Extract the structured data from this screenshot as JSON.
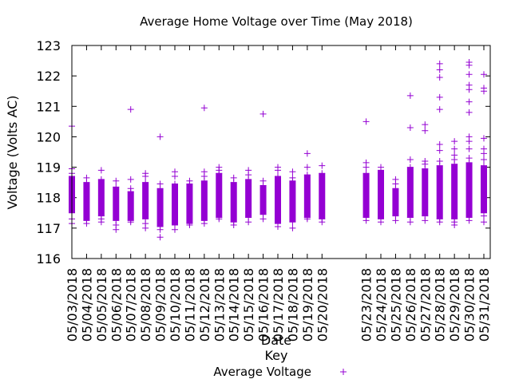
{
  "chart_data": {
    "type": "scatter",
    "title": "Average Home Voltage over Time (May 2018)",
    "xlabel": "Date",
    "ylabel": "Voltage (Volts AC)",
    "ylim": [
      116,
      123
    ],
    "yticks": [
      116,
      117,
      118,
      119,
      120,
      121,
      122,
      123
    ],
    "grid": false,
    "legend": {
      "title": "Key",
      "position": "bottom-center",
      "entries": [
        "Average Voltage"
      ]
    },
    "series_color": "#9400d3",
    "series": [
      {
        "name": "Average Voltage",
        "days": [
          {
            "date": "05/03/2018",
            "min": 117.5,
            "max": 118.7,
            "outliers": [
              120.35,
              118.95,
              118.8,
              117.3,
              117.15
            ]
          },
          {
            "date": "05/04/2018",
            "min": 117.25,
            "max": 118.5,
            "outliers": [
              118.65,
              117.15
            ]
          },
          {
            "date": "05/05/2018",
            "min": 117.4,
            "max": 118.6,
            "outliers": [
              118.9,
              117.2,
              117.3
            ]
          },
          {
            "date": "05/06/2018",
            "min": 117.25,
            "max": 118.35,
            "outliers": [
              118.55,
              117.1,
              116.95
            ]
          },
          {
            "date": "05/07/2018",
            "min": 117.25,
            "max": 118.2,
            "outliers": [
              120.9,
              118.6,
              118.3,
              117.2
            ]
          },
          {
            "date": "05/08/2018",
            "min": 117.3,
            "max": 118.5,
            "outliers": [
              118.8,
              118.7,
              117.15,
              117.0
            ]
          },
          {
            "date": "05/09/2018",
            "min": 117.05,
            "max": 118.3,
            "outliers": [
              120.0,
              118.45,
              116.95,
              116.7
            ]
          },
          {
            "date": "05/10/2018",
            "min": 117.1,
            "max": 118.45,
            "outliers": [
              118.85,
              118.7,
              116.95
            ]
          },
          {
            "date": "05/11/2018",
            "min": 117.15,
            "max": 118.45,
            "outliers": [
              118.55,
              117.1
            ]
          },
          {
            "date": "05/12/2018",
            "min": 117.25,
            "max": 118.55,
            "outliers": [
              120.95,
              118.85,
              118.7,
              117.15
            ]
          },
          {
            "date": "05/13/2018",
            "min": 117.35,
            "max": 118.8,
            "outliers": [
              119.0,
              118.9,
              117.3
            ]
          },
          {
            "date": "05/14/2018",
            "min": 117.2,
            "max": 118.5,
            "outliers": [
              118.65,
              117.1
            ]
          },
          {
            "date": "05/15/2018",
            "min": 117.35,
            "max": 118.6,
            "outliers": [
              118.9,
              118.75,
              117.2
            ]
          },
          {
            "date": "05/16/2018",
            "min": 117.45,
            "max": 118.4,
            "outliers": [
              120.75,
              118.55,
              117.3
            ]
          },
          {
            "date": "05/17/2018",
            "min": 117.15,
            "max": 118.7,
            "outliers": [
              119.0,
              118.9,
              117.05
            ]
          },
          {
            "date": "05/18/2018",
            "min": 117.2,
            "max": 118.55,
            "outliers": [
              118.85,
              118.65,
              117.0
            ]
          },
          {
            "date": "05/19/2018",
            "min": 117.35,
            "max": 118.75,
            "outliers": [
              119.45,
              119.0,
              117.3
            ]
          },
          {
            "date": "05/20/2018",
            "min": 117.3,
            "max": 118.8,
            "outliers": [
              119.05,
              117.2
            ]
          },
          {
            "date": "05/23/2018",
            "min": 117.35,
            "max": 118.8,
            "outliers": [
              120.5,
              119.15,
              119.0,
              117.25
            ]
          },
          {
            "date": "05/24/2018",
            "min": 117.3,
            "max": 118.9,
            "outliers": [
              119.0,
              117.2
            ]
          },
          {
            "date": "05/25/2018",
            "min": 117.4,
            "max": 118.3,
            "outliers": [
              118.6,
              118.45,
              117.25
            ]
          },
          {
            "date": "05/26/2018",
            "min": 117.35,
            "max": 119.0,
            "outliers": [
              121.35,
              120.3,
              119.25,
              117.2
            ]
          },
          {
            "date": "05/27/2018",
            "min": 117.4,
            "max": 118.95,
            "outliers": [
              120.4,
              120.2,
              119.2,
              119.1,
              117.25
            ]
          },
          {
            "date": "05/28/2018",
            "min": 117.3,
            "max": 119.05,
            "outliers": [
              122.4,
              122.2,
              121.95,
              121.3,
              120.9,
              119.75,
              119.55,
              119.2,
              117.2
            ]
          },
          {
            "date": "05/29/2018",
            "min": 117.3,
            "max": 119.1,
            "outliers": [
              119.85,
              119.6,
              119.4,
              119.25,
              117.2,
              117.1
            ]
          },
          {
            "date": "05/30/2018",
            "min": 117.35,
            "max": 119.15,
            "outliers": [
              122.45,
              122.35,
              122.05,
              121.7,
              121.55,
              121.15,
              120.8,
              120.0,
              119.85,
              119.6,
              119.3,
              117.25
            ]
          },
          {
            "date": "05/31/2018",
            "min": 117.5,
            "max": 119.05,
            "outliers": [
              122.05,
              121.6,
              121.5,
              119.95,
              119.6,
              119.45,
              119.25,
              117.95,
              117.4,
              117.2
            ]
          }
        ]
      }
    ]
  }
}
